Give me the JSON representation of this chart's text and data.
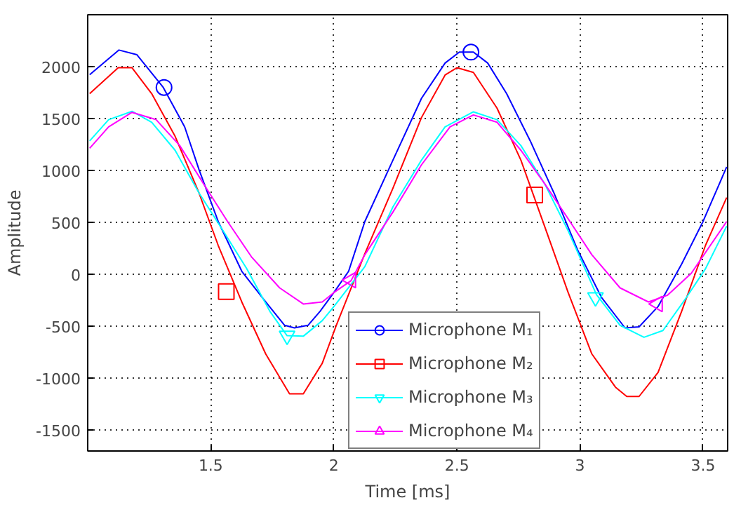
{
  "chart_data": {
    "type": "line",
    "xlabel": "Time [ms]",
    "ylabel": "Amplitude",
    "xlim": [
      1.0,
      3.6
    ],
    "xticks": [
      1.5,
      2,
      2.5,
      3,
      3.5
    ],
    "ylim": [
      -1700,
      2500
    ],
    "yticks": [
      -1500,
      -1000,
      -500,
      0,
      500,
      1000,
      1500,
      2000
    ],
    "grid": true,
    "legend": "bottom",
    "line_style": "solid",
    "series": [
      {
        "name": "Microphone M₁",
        "color": "#0000ff",
        "x": [
          1.008,
          1.127,
          1.2,
          1.307,
          1.394,
          1.452,
          1.53,
          1.626,
          1.723,
          1.8,
          1.84,
          1.895,
          1.944,
          2.0,
          2.06,
          2.126,
          2.24,
          2.356,
          2.452,
          2.51,
          2.567,
          2.625,
          2.702,
          2.798,
          2.894,
          2.99,
          3.087,
          3.183,
          3.24,
          3.317,
          3.413,
          3.5,
          3.596
        ],
        "values": [
          1923,
          2160,
          2115,
          1800,
          1420,
          1010,
          510,
          30,
          -265,
          -490,
          -515,
          -490,
          -355,
          -175,
          30,
          510,
          1100,
          1695,
          2035,
          2140,
          2140,
          2035,
          1740,
          1285,
          785,
          237,
          -220,
          -515,
          -505,
          -310,
          100,
          510,
          1035
        ]
      },
      {
        "name": "Microphone M₂",
        "color": "#ff0000",
        "x": [
          1.008,
          1.124,
          1.18,
          1.26,
          1.355,
          1.452,
          1.53,
          1.626,
          1.723,
          1.82,
          1.876,
          1.953,
          2.01,
          2.126,
          2.24,
          2.356,
          2.452,
          2.5,
          2.567,
          2.663,
          2.76,
          2.856,
          2.952,
          3.048,
          3.144,
          3.19,
          3.24,
          3.317,
          3.413,
          3.51,
          3.596
        ],
        "values": [
          1740,
          1990,
          1990,
          1740,
          1330,
          785,
          280,
          -265,
          -765,
          -1150,
          -1150,
          -855,
          -490,
          200,
          830,
          1510,
          1920,
          1990,
          1945,
          1600,
          1100,
          465,
          -175,
          -765,
          -1085,
          -1175,
          -1175,
          -945,
          -355,
          280,
          740
        ]
      },
      {
        "name": "Microphone M₃",
        "color": "#00ffff",
        "x": [
          1.008,
          1.085,
          1.18,
          1.26,
          1.355,
          1.452,
          1.55,
          1.646,
          1.74,
          1.81,
          1.876,
          1.953,
          2.0,
          2.126,
          2.24,
          2.356,
          2.452,
          2.567,
          2.663,
          2.76,
          2.856,
          2.952,
          3.067,
          3.163,
          3.26,
          3.337,
          3.433,
          3.51,
          3.596
        ],
        "values": [
          1285,
          1490,
          1570,
          1465,
          1195,
          785,
          420,
          55,
          -355,
          -590,
          -595,
          -445,
          -310,
          75,
          650,
          1100,
          1420,
          1565,
          1490,
          1240,
          875,
          420,
          -195,
          -490,
          -605,
          -540,
          -220,
          55,
          465
        ]
      },
      {
        "name": "Microphone M₄",
        "color": "#ff00ff",
        "x": [
          1.008,
          1.085,
          1.18,
          1.278,
          1.374,
          1.47,
          1.568,
          1.665,
          1.78,
          1.876,
          1.953,
          2.0,
          2.07,
          2.126,
          2.24,
          2.356,
          2.472,
          2.567,
          2.663,
          2.76,
          2.856,
          2.952,
          3.048,
          3.163,
          3.278,
          3.356,
          3.452,
          3.596
        ],
        "values": [
          1215,
          1420,
          1560,
          1490,
          1240,
          875,
          510,
          170,
          -130,
          -285,
          -265,
          -175,
          -60,
          190,
          600,
          1055,
          1420,
          1535,
          1465,
          1195,
          875,
          535,
          190,
          -130,
          -265,
          -200,
          10,
          510
        ]
      },
      {
        "type": "scatter",
        "color": "#0000ff",
        "marker": "circle",
        "x": [
          1.31,
          2.557
        ],
        "values": [
          1800,
          2140
        ]
      },
      {
        "type": "scatter",
        "color": "#ff0000",
        "marker": "square",
        "x": [
          1.563,
          2.816
        ],
        "values": [
          -165,
          765
        ]
      },
      {
        "type": "scatter",
        "color": "#00ffff",
        "marker": "triangle",
        "x": [
          1.81,
          3.063
        ],
        "values": [
          -590,
          -220
        ]
      },
      {
        "type": "scatter",
        "color": "#ff00ff",
        "marker": "triangle_left",
        "x": [
          2.07,
          3.316
        ],
        "values": [
          -55,
          -285
        ]
      }
    ]
  }
}
